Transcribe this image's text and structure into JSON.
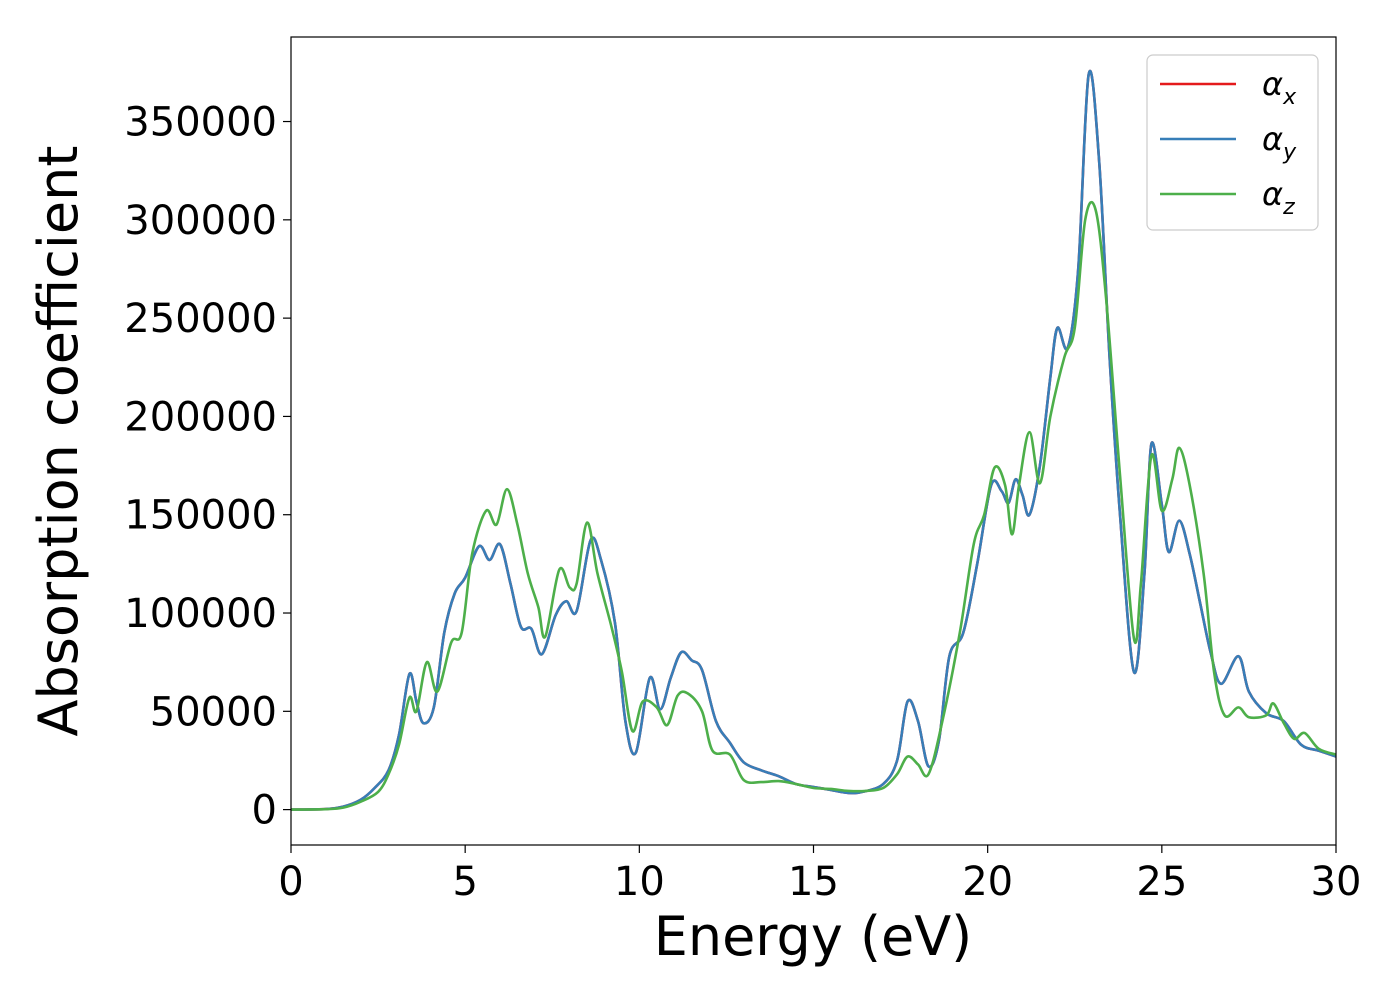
{
  "chart_data": {
    "type": "line",
    "xlabel": "Energy (eV)",
    "ylabel": "Absorption coefficient",
    "xlim": [
      0,
      30
    ],
    "ylim": [
      -18000,
      393000
    ],
    "xticks": [
      0,
      5,
      10,
      15,
      20,
      25,
      30
    ],
    "yticks": [
      0,
      50000,
      100000,
      150000,
      200000,
      250000,
      300000,
      350000
    ],
    "grid": false,
    "legend_position": "top-right",
    "series": [
      {
        "name": "αx",
        "symbol": "α",
        "subscript": "x",
        "color": "#e41a1c",
        "points": [
          [
            0,
            0
          ],
          [
            1,
            300
          ],
          [
            1.5,
            1500
          ],
          [
            2,
            5000
          ],
          [
            2.4,
            11000
          ],
          [
            2.8,
            20000
          ],
          [
            3.1,
            38000
          ],
          [
            3.4,
            69000
          ],
          [
            3.6,
            55000
          ],
          [
            3.8,
            44000
          ],
          [
            4.1,
            52000
          ],
          [
            4.4,
            90000
          ],
          [
            4.7,
            110000
          ],
          [
            5,
            118000
          ],
          [
            5.4,
            134000
          ],
          [
            5.7,
            127000
          ],
          [
            6,
            135000
          ],
          [
            6.3,
            115000
          ],
          [
            6.6,
            93000
          ],
          [
            6.9,
            92000
          ],
          [
            7.2,
            79000
          ],
          [
            7.6,
            99000
          ],
          [
            7.9,
            106000
          ],
          [
            8.2,
            101000
          ],
          [
            8.6,
            137000
          ],
          [
            8.9,
            127000
          ],
          [
            9.3,
            95000
          ],
          [
            9.6,
            45000
          ],
          [
            9.9,
            29000
          ],
          [
            10.3,
            67000
          ],
          [
            10.6,
            51000
          ],
          [
            10.9,
            67000
          ],
          [
            11.2,
            80000
          ],
          [
            11.5,
            76000
          ],
          [
            11.8,
            71000
          ],
          [
            12.2,
            45000
          ],
          [
            12.6,
            34000
          ],
          [
            13,
            24000
          ],
          [
            13.5,
            20000
          ],
          [
            14,
            17000
          ],
          [
            14.5,
            13000
          ],
          [
            15,
            11500
          ],
          [
            15.5,
            10000
          ],
          [
            16,
            8500
          ],
          [
            16.4,
            9000
          ],
          [
            17,
            13000
          ],
          [
            17.4,
            25000
          ],
          [
            17.7,
            55000
          ],
          [
            18,
            45000
          ],
          [
            18.3,
            22000
          ],
          [
            18.6,
            35000
          ],
          [
            18.9,
            78000
          ],
          [
            19.3,
            90000
          ],
          [
            19.7,
            125000
          ],
          [
            20.1,
            165000
          ],
          [
            20.4,
            162000
          ],
          [
            20.6,
            156000
          ],
          [
            20.8,
            168000
          ],
          [
            21,
            160000
          ],
          [
            21.2,
            150000
          ],
          [
            21.5,
            175000
          ],
          [
            21.8,
            220000
          ],
          [
            22,
            245000
          ],
          [
            22.3,
            235000
          ],
          [
            22.6,
            275000
          ],
          [
            22.9,
            374000
          ],
          [
            23.2,
            330000
          ],
          [
            23.5,
            230000
          ],
          [
            23.8,
            150000
          ],
          [
            24.2,
            70000
          ],
          [
            24.5,
            120000
          ],
          [
            24.7,
            186000
          ],
          [
            25,
            155000
          ],
          [
            25.2,
            131000
          ],
          [
            25.5,
            147000
          ],
          [
            25.8,
            130000
          ],
          [
            26.1,
            105000
          ],
          [
            26.4,
            80000
          ],
          [
            26.7,
            64000
          ],
          [
            27.2,
            78000
          ],
          [
            27.5,
            60000
          ],
          [
            28,
            49000
          ],
          [
            28.5,
            45000
          ],
          [
            29,
            33000
          ],
          [
            29.5,
            30000
          ],
          [
            30,
            27000
          ]
        ]
      },
      {
        "name": "αy",
        "symbol": "α",
        "subscript": "y",
        "color": "#377eb8",
        "points": [
          [
            0,
            0
          ],
          [
            1,
            300
          ],
          [
            1.5,
            1500
          ],
          [
            2,
            5000
          ],
          [
            2.4,
            11000
          ],
          [
            2.8,
            20000
          ],
          [
            3.1,
            38000
          ],
          [
            3.4,
            69000
          ],
          [
            3.6,
            55000
          ],
          [
            3.8,
            44000
          ],
          [
            4.1,
            52000
          ],
          [
            4.4,
            90000
          ],
          [
            4.7,
            110000
          ],
          [
            5,
            118000
          ],
          [
            5.4,
            134000
          ],
          [
            5.7,
            127000
          ],
          [
            6,
            135000
          ],
          [
            6.3,
            115000
          ],
          [
            6.6,
            93000
          ],
          [
            6.9,
            92000
          ],
          [
            7.2,
            79000
          ],
          [
            7.6,
            99000
          ],
          [
            7.9,
            106000
          ],
          [
            8.2,
            101000
          ],
          [
            8.6,
            137000
          ],
          [
            8.9,
            127000
          ],
          [
            9.3,
            95000
          ],
          [
            9.6,
            45000
          ],
          [
            9.9,
            29000
          ],
          [
            10.3,
            67000
          ],
          [
            10.6,
            51000
          ],
          [
            10.9,
            67000
          ],
          [
            11.2,
            80000
          ],
          [
            11.5,
            76000
          ],
          [
            11.8,
            71000
          ],
          [
            12.2,
            45000
          ],
          [
            12.6,
            34000
          ],
          [
            13,
            24000
          ],
          [
            13.5,
            20000
          ],
          [
            14,
            17000
          ],
          [
            14.5,
            13000
          ],
          [
            15,
            11500
          ],
          [
            15.5,
            10000
          ],
          [
            16,
            8500
          ],
          [
            16.4,
            9000
          ],
          [
            17,
            13000
          ],
          [
            17.4,
            25000
          ],
          [
            17.7,
            55000
          ],
          [
            18,
            45000
          ],
          [
            18.3,
            22000
          ],
          [
            18.6,
            35000
          ],
          [
            18.9,
            78000
          ],
          [
            19.3,
            90000
          ],
          [
            19.7,
            125000
          ],
          [
            20.1,
            165000
          ],
          [
            20.4,
            162000
          ],
          [
            20.6,
            156000
          ],
          [
            20.8,
            168000
          ],
          [
            21,
            160000
          ],
          [
            21.2,
            150000
          ],
          [
            21.5,
            175000
          ],
          [
            21.8,
            220000
          ],
          [
            22,
            245000
          ],
          [
            22.3,
            235000
          ],
          [
            22.6,
            275000
          ],
          [
            22.9,
            374000
          ],
          [
            23.2,
            330000
          ],
          [
            23.5,
            230000
          ],
          [
            23.8,
            150000
          ],
          [
            24.2,
            70000
          ],
          [
            24.5,
            120000
          ],
          [
            24.7,
            186000
          ],
          [
            25,
            155000
          ],
          [
            25.2,
            131000
          ],
          [
            25.5,
            147000
          ],
          [
            25.8,
            130000
          ],
          [
            26.1,
            105000
          ],
          [
            26.4,
            80000
          ],
          [
            26.7,
            64000
          ],
          [
            27.2,
            78000
          ],
          [
            27.5,
            60000
          ],
          [
            28,
            49000
          ],
          [
            28.5,
            45000
          ],
          [
            29,
            33000
          ],
          [
            29.5,
            30000
          ],
          [
            30,
            27000
          ]
        ]
      },
      {
        "name": "αz",
        "symbol": "α",
        "subscript": "z",
        "color": "#4daf4a",
        "points": [
          [
            0,
            0
          ],
          [
            1,
            200
          ],
          [
            1.5,
            1000
          ],
          [
            2,
            4000
          ],
          [
            2.5,
            9000
          ],
          [
            2.8,
            18000
          ],
          [
            3.1,
            33000
          ],
          [
            3.4,
            57000
          ],
          [
            3.6,
            50000
          ],
          [
            3.9,
            75000
          ],
          [
            4.2,
            60000
          ],
          [
            4.6,
            85000
          ],
          [
            4.9,
            90000
          ],
          [
            5.2,
            130000
          ],
          [
            5.6,
            152000
          ],
          [
            5.9,
            145000
          ],
          [
            6.2,
            163000
          ],
          [
            6.5,
            145000
          ],
          [
            6.8,
            120000
          ],
          [
            7.1,
            103000
          ],
          [
            7.3,
            88000
          ],
          [
            7.7,
            122000
          ],
          [
            8,
            113000
          ],
          [
            8.2,
            115000
          ],
          [
            8.5,
            146000
          ],
          [
            8.8,
            120000
          ],
          [
            9.2,
            93000
          ],
          [
            9.5,
            70000
          ],
          [
            9.8,
            40000
          ],
          [
            10.1,
            55000
          ],
          [
            10.5,
            52000
          ],
          [
            10.8,
            43000
          ],
          [
            11.1,
            58000
          ],
          [
            11.4,
            59000
          ],
          [
            11.8,
            50000
          ],
          [
            12.1,
            30000
          ],
          [
            12.6,
            28000
          ],
          [
            13,
            15000
          ],
          [
            13.5,
            14000
          ],
          [
            14,
            14500
          ],
          [
            14.5,
            13000
          ],
          [
            15,
            11000
          ],
          [
            15.5,
            10500
          ],
          [
            16,
            9500
          ],
          [
            16.5,
            9500
          ],
          [
            17,
            11000
          ],
          [
            17.4,
            18000
          ],
          [
            17.7,
            27000
          ],
          [
            18,
            23000
          ],
          [
            18.3,
            18000
          ],
          [
            18.7,
            45000
          ],
          [
            19.2,
            90000
          ],
          [
            19.6,
            135000
          ],
          [
            19.9,
            150000
          ],
          [
            20.2,
            174000
          ],
          [
            20.5,
            165000
          ],
          [
            20.7,
            140000
          ],
          [
            20.9,
            165000
          ],
          [
            21.2,
            192000
          ],
          [
            21.5,
            166000
          ],
          [
            21.8,
            200000
          ],
          [
            22.2,
            230000
          ],
          [
            22.5,
            245000
          ],
          [
            22.8,
            300000
          ],
          [
            23.1,
            305000
          ],
          [
            23.4,
            260000
          ],
          [
            23.8,
            170000
          ],
          [
            24.2,
            87000
          ],
          [
            24.4,
            115000
          ],
          [
            24.7,
            180000
          ],
          [
            25,
            152000
          ],
          [
            25.3,
            168000
          ],
          [
            25.5,
            184000
          ],
          [
            25.8,
            165000
          ],
          [
            26.2,
            120000
          ],
          [
            26.5,
            70000
          ],
          [
            26.8,
            48000
          ],
          [
            27.2,
            52000
          ],
          [
            27.5,
            47000
          ],
          [
            28,
            48000
          ],
          [
            28.2,
            54000
          ],
          [
            28.5,
            44000
          ],
          [
            28.8,
            36000
          ],
          [
            29.1,
            39000
          ],
          [
            29.5,
            31000
          ],
          [
            30,
            28000
          ]
        ]
      }
    ]
  }
}
